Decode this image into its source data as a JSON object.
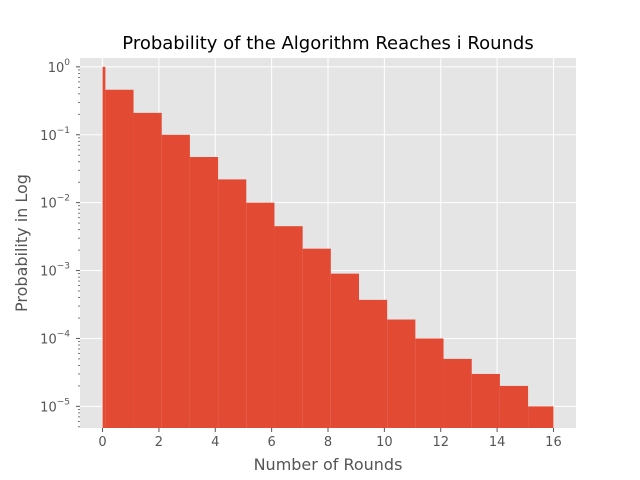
{
  "chart_data": {
    "type": "bar",
    "title": "Probability of the Algorithm Reaches i Rounds",
    "xlabel": "Number of Rounds",
    "ylabel": "Probability in Log",
    "yscale": "log",
    "xlim": [
      -0.8,
      16.8
    ],
    "ylim": [
      4.8e-06,
      1.35
    ],
    "x_ticks": [
      0,
      2,
      4,
      6,
      8,
      10,
      12,
      14,
      16
    ],
    "y_tick_exponents": [
      0,
      -1,
      -2,
      -3,
      -4,
      -5
    ],
    "grid": true,
    "bar_color": "#E24A33",
    "bins": [
      {
        "x0": 0.0,
        "x1": 0.1,
        "value": 1.0
      },
      {
        "x0": 0.1,
        "x1": 1.1,
        "value": 0.46
      },
      {
        "x0": 1.1,
        "x1": 2.1,
        "value": 0.21
      },
      {
        "x0": 2.1,
        "x1": 3.1,
        "value": 0.1
      },
      {
        "x0": 3.1,
        "x1": 4.1,
        "value": 0.047
      },
      {
        "x0": 4.1,
        "x1": 5.1,
        "value": 0.022
      },
      {
        "x0": 5.1,
        "x1": 6.1,
        "value": 0.01
      },
      {
        "x0": 6.1,
        "x1": 7.1,
        "value": 0.0045
      },
      {
        "x0": 7.1,
        "x1": 8.1,
        "value": 0.0021
      },
      {
        "x0": 8.1,
        "x1": 9.1,
        "value": 0.0009
      },
      {
        "x0": 9.1,
        "x1": 10.1,
        "value": 0.00037
      },
      {
        "x0": 10.1,
        "x1": 11.1,
        "value": 0.00019
      },
      {
        "x0": 11.1,
        "x1": 12.1,
        "value": 0.0001
      },
      {
        "x0": 12.1,
        "x1": 13.1,
        "value": 5e-05
      },
      {
        "x0": 13.1,
        "x1": 14.1,
        "value": 3e-05
      },
      {
        "x0": 14.1,
        "x1": 15.1,
        "value": 2e-05
      },
      {
        "x0": 15.1,
        "x1": 16.0,
        "value": 1e-05
      }
    ]
  }
}
